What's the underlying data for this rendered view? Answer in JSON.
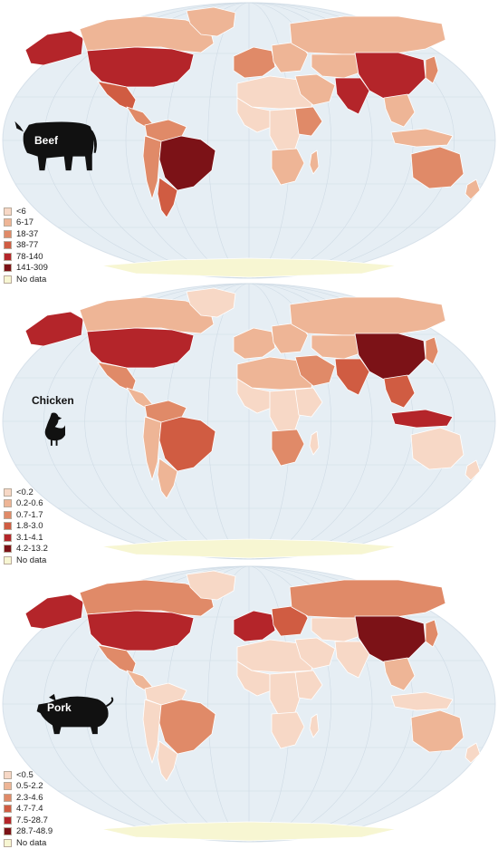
{
  "colors": {
    "ocean": "#e6eef4",
    "graticule": "#cfdbe5",
    "border": "#ffffff",
    "nodata": "#f7f6d2",
    "c1": "#f7d8c6",
    "c2": "#eeb596",
    "c3": "#e08a68",
    "c4": "#d05c42",
    "c5": "#b4252a",
    "c6": "#7c1217",
    "silhouette": "#111111"
  },
  "panels": [
    {
      "name": "beef",
      "animal_label": "Beef",
      "animal_icon": "cow-icon",
      "legend": [
        "<6",
        "6-17",
        "18-37",
        "38-77",
        "78-140",
        "141-309",
        "No data"
      ],
      "regions": {
        "canada": "c2",
        "usa": "c5",
        "alaska": "c5",
        "greenland": "c2",
        "mexico": "c4",
        "central_america": "c3",
        "brazil": "c6",
        "argentina": "c4",
        "andes": "c3",
        "colombia_venezuela": "c3",
        "north_africa": "c1",
        "west_africa": "c1",
        "central_africa": "c1",
        "east_africa": "c3",
        "southern_africa": "c2",
        "western_europe": "c3",
        "eastern_europe": "c2",
        "russia": "c2",
        "middle_east": "c2",
        "central_asia": "c2",
        "south_asia": "c5",
        "china": "c5",
        "southeast_asia": "c2",
        "japan_korea": "c3",
        "australia": "c3",
        "new_zealand": "c2",
        "indonesia": "c2",
        "madagascar": "c2"
      }
    },
    {
      "name": "chicken",
      "animal_label": "Chicken",
      "animal_icon": "chicken-icon",
      "legend": [
        "<0.2",
        "0.2-0.6",
        "0.7-1.7",
        "1.8-3.0",
        "3.1-4.1",
        "4.2-13.2",
        "No data"
      ],
      "regions": {
        "canada": "c2",
        "usa": "c5",
        "alaska": "c5",
        "greenland": "c1",
        "mexico": "c3",
        "central_america": "c2",
        "brazil": "c4",
        "argentina": "c2",
        "andes": "c2",
        "colombia_venezuela": "c3",
        "north_africa": "c2",
        "west_africa": "c1",
        "central_africa": "c1",
        "east_africa": "c1",
        "southern_africa": "c3",
        "western_europe": "c2",
        "eastern_europe": "c2",
        "russia": "c2",
        "middle_east": "c3",
        "central_asia": "c2",
        "south_asia": "c4",
        "china": "c6",
        "southeast_asia": "c4",
        "japan_korea": "c3",
        "australia": "c1",
        "new_zealand": "c1",
        "indonesia": "c5",
        "madagascar": "c1"
      }
    },
    {
      "name": "pork",
      "animal_label": "Pork",
      "animal_icon": "pig-icon",
      "legend": [
        "<0.5",
        "0.5-2.2",
        "2.3-4.6",
        "4.7-7.4",
        "7.5-28.7",
        "28.7-48.9",
        "No data"
      ],
      "regions": {
        "canada": "c3",
        "usa": "c5",
        "alaska": "c5",
        "greenland": "c1",
        "mexico": "c3",
        "central_america": "c2",
        "brazil": "c3",
        "argentina": "c1",
        "andes": "c1",
        "colombia_venezuela": "c1",
        "north_africa": "c1",
        "west_africa": "c1",
        "central_africa": "c1",
        "east_africa": "c1",
        "southern_africa": "c1",
        "western_europe": "c5",
        "eastern_europe": "c4",
        "russia": "c3",
        "middle_east": "c1",
        "central_asia": "c1",
        "south_asia": "c1",
        "china": "c6",
        "southeast_asia": "c2",
        "japan_korea": "c3",
        "australia": "c2",
        "new_zealand": "c1",
        "indonesia": "c1",
        "madagascar": "c1"
      }
    }
  ]
}
